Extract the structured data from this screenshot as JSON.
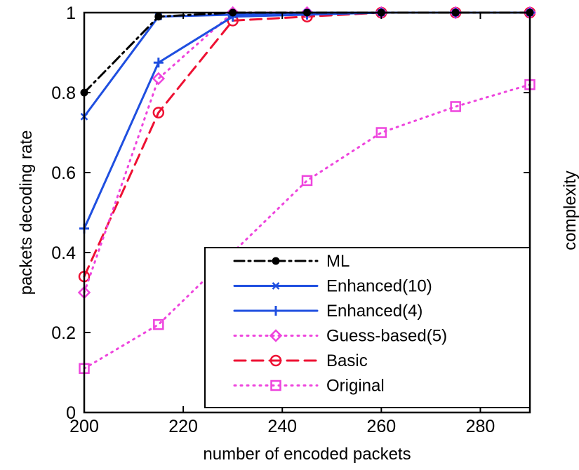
{
  "chart_data": {
    "type": "line",
    "xlabel": "number of encoded packets",
    "ylabel": "packets decoding rate",
    "xlim": [
      200,
      290
    ],
    "ylim": [
      0,
      1
    ],
    "xticks": [
      200,
      220,
      240,
      260,
      280
    ],
    "yticks": [
      0,
      0.2,
      0.4,
      0.6,
      0.8,
      1
    ],
    "ytick_labels": [
      "0",
      "0.2",
      "0.4",
      "0.6",
      "0.8",
      "1"
    ],
    "grid": false,
    "legend_position": "lower-right",
    "clipped_label_right": "complexity",
    "series": [
      {
        "name": "ML",
        "color": "#000000",
        "dash": "dash-dot",
        "marker": "dot",
        "x": [
          200,
          215,
          230,
          245,
          260,
          275,
          290
        ],
        "values": [
          0.8,
          0.99,
          1.0,
          1.0,
          1.0,
          1.0,
          1.0
        ]
      },
      {
        "name": "Enhanced(10)",
        "color": "#1f4fe0",
        "dash": "solid",
        "marker": "x",
        "x": [
          200,
          215,
          230,
          245,
          260,
          275,
          290
        ],
        "values": [
          0.74,
          0.99,
          0.995,
          1.0,
          1.0,
          1.0,
          1.0
        ]
      },
      {
        "name": "Enhanced(4)",
        "color": "#1f4fe0",
        "dash": "solid",
        "marker": "plus",
        "x": [
          200,
          215,
          230,
          245,
          260,
          275,
          290
        ],
        "values": [
          0.46,
          0.875,
          0.99,
          0.995,
          1.0,
          1.0,
          1.0
        ]
      },
      {
        "name": "Guess-based(5)",
        "color": "#ee44dd",
        "dash": "dotted",
        "marker": "diamond",
        "x": [
          200,
          215,
          230,
          245,
          260,
          275,
          290
        ],
        "values": [
          0.3,
          0.835,
          1.0,
          1.0,
          1.0,
          1.0,
          1.0
        ]
      },
      {
        "name": "Basic",
        "color": "#ee1133",
        "dash": "dashed",
        "marker": "circle",
        "x": [
          200,
          215,
          230,
          245,
          260,
          275,
          290
        ],
        "values": [
          0.34,
          0.75,
          0.98,
          0.99,
          1.0,
          1.0,
          1.0
        ]
      },
      {
        "name": "Original",
        "color": "#ee44dd",
        "dash": "dotted",
        "marker": "square",
        "x": [
          200,
          215,
          245,
          260,
          275,
          290
        ],
        "values": [
          0.11,
          0.22,
          0.58,
          0.7,
          0.765,
          0.82
        ]
      }
    ]
  }
}
